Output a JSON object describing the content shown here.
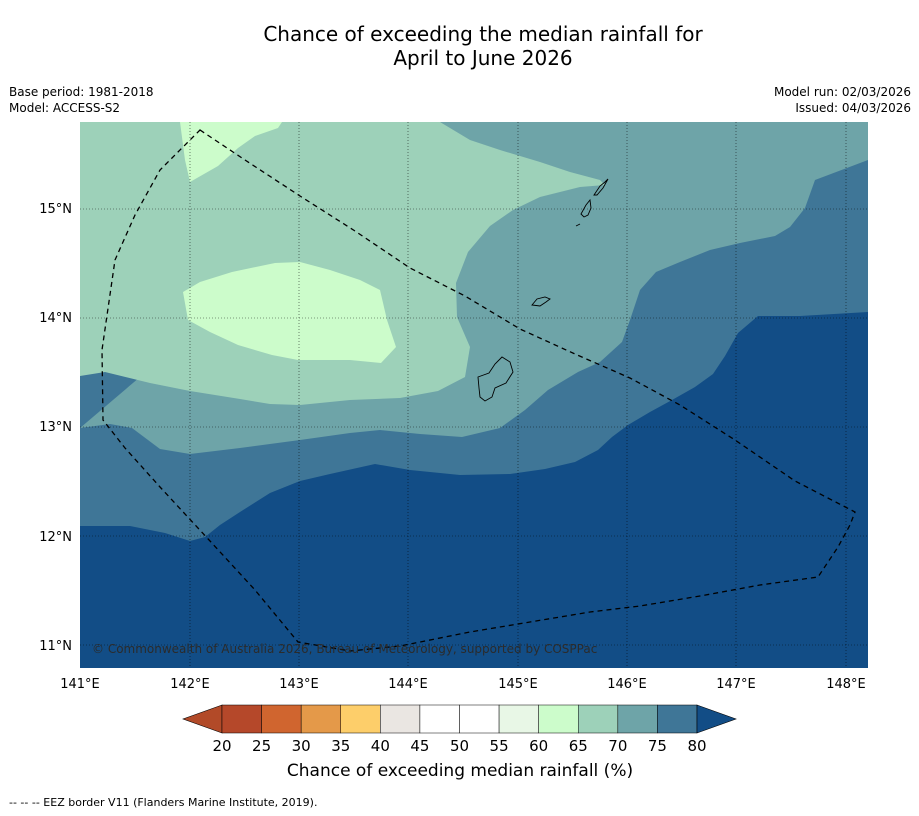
{
  "header": {
    "title_line1": "Chance of exceeding the median rainfall for",
    "title_line2": "April to June 2026",
    "base_period": "Base period: 1981-2018",
    "model": "Model: ACCESS-S2",
    "model_run": "Model run: 02/03/2026",
    "issued": "Issued: 04/03/2026"
  },
  "map": {
    "lon_labels": [
      "141°E",
      "142°E",
      "143°E",
      "144°E",
      "145°E",
      "146°E",
      "147°E",
      "148°E"
    ],
    "lat_labels": [
      "15°N",
      "14°N",
      "13°N",
      "12°N",
      "11°N"
    ],
    "copyright": "© Commonwealth of Australia 2026, Bureau of Meteorology, supported by COSPPac",
    "colors": {
      "lt55": "#ffffff",
      "c60": "#e8f7e6",
      "c65": "#ccfccb",
      "c70": "#9dd1b9",
      "c75": "#6ea4a8",
      "c80": "#3f7697",
      "gt80": "#124d86"
    }
  },
  "colorbar": {
    "title": "Chance of exceeding median rainfall (%)",
    "ticks": [
      "20",
      "25",
      "30",
      "35",
      "40",
      "45",
      "50",
      "55",
      "60",
      "65",
      "70",
      "75",
      "80"
    ],
    "colors": [
      "#b24a28",
      "#b5482a",
      "#d0652f",
      "#e49949",
      "#fdce6a",
      "#eae6e2",
      "#ffffff",
      "#ffffff",
      "#e8f7e6",
      "#ccfccb",
      "#9dd1b9",
      "#6ea4a8",
      "#3f7697",
      "#124d86"
    ]
  },
  "footer": {
    "legend": "--  --  -- EEZ border V11 (Flanders Marine Institute, 2019)."
  }
}
